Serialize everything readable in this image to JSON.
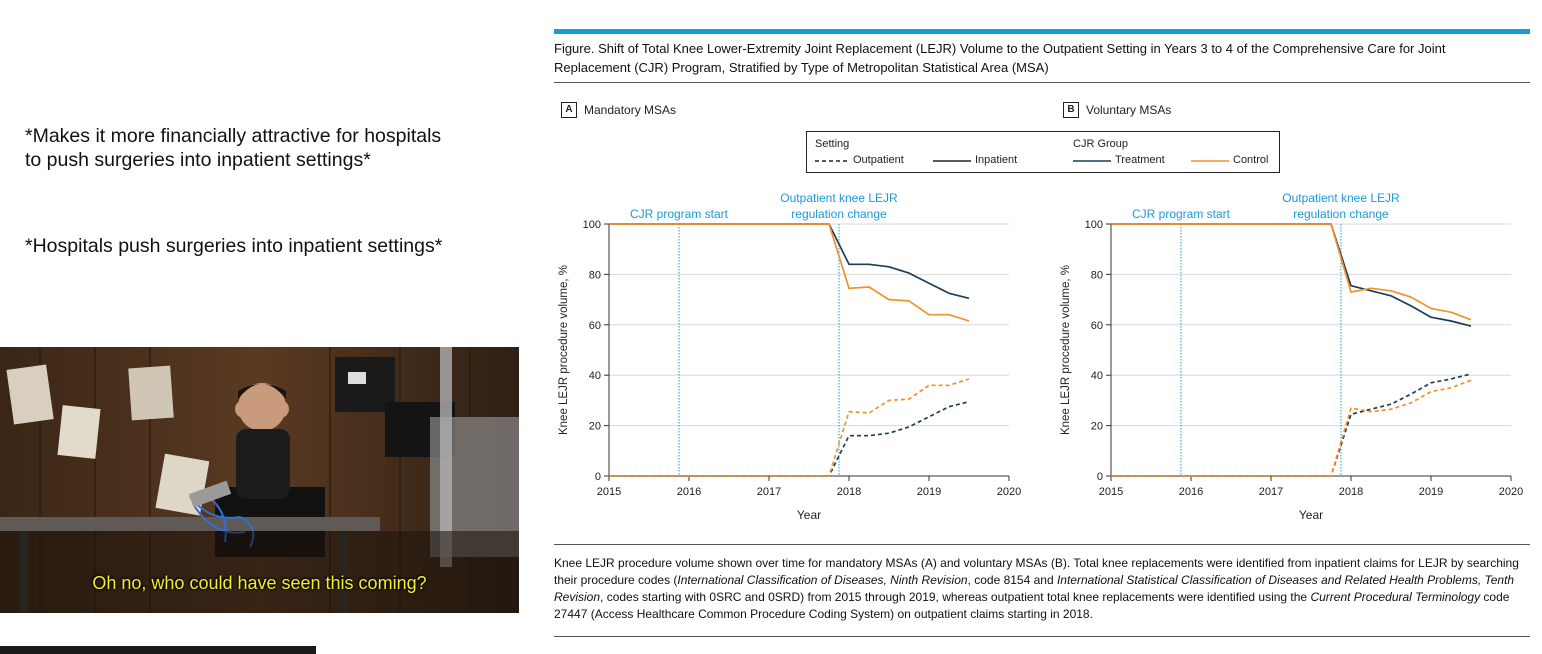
{
  "meme": {
    "line1": "*Makes it more  financially attractive for hospitals to push surgeries into inpatient settings*",
    "line2": "*Hospitals push surgeries into inpatient settings*",
    "subtitle": "Oh no, who could have seen this coming?"
  },
  "figure": {
    "title": "Figure. Shift of Total Knee Lower-Extremity Joint Replacement (LEJR) Volume to the Outpatient Setting in Years 3 to 4 of the Comprehensive Care for Joint Replacement (CJR) Program, Stratified by Type of Metropolitan Statistical Area (MSA)",
    "legend": {
      "setting_title": "Setting",
      "outpatient": "Outpatient",
      "inpatient": "Inpatient",
      "group_title": "CJR Group",
      "treatment": "Treatment",
      "control": "Control"
    },
    "caption": {
      "p1": "Knee LEJR procedure volume shown over time for mandatory MSAs (A) and voluntary MSAs (B). Total knee replacements were identified from inpatient claims for LEJR by searching their procedure codes (",
      "i1": "International Classification of Diseases, Ninth Revision",
      "p2": ", code 8154 and ",
      "i2": "International Statistical Classification of Diseases and Related Health Problems, Tenth Revision",
      "p3": ", codes starting with 0SRC and 0SRD) from 2015 through 2019, whereas outpatient total knee replacements were identified using the ",
      "i3": "Current Procedural Terminology",
      "p4": " code 27447 (Access Healthcare Common Procedure Coding System) on outpatient claims starting in 2018."
    },
    "colors": {
      "treatment": "#1d3d5a",
      "control": "#f0922b",
      "annotation": "#1a9bd7"
    }
  },
  "chart_data": [
    {
      "type": "line",
      "panel_letter": "A",
      "panel_title": "Mandatory MSAs",
      "xlabel": "Year",
      "ylabel": "Knee LEJR procedure volume, %",
      "xlim": [
        2015,
        2020
      ],
      "ylim": [
        0,
        100
      ],
      "xticks": [
        2015,
        2016,
        2017,
        2018,
        2019,
        2020
      ],
      "yticks": [
        0,
        20,
        40,
        60,
        80,
        100
      ],
      "annotations": [
        {
          "x": 2015.875,
          "label": [
            "CJR program start"
          ]
        },
        {
          "x": 2017.875,
          "label": [
            "Outpatient knee LEJR",
            "regulation change"
          ]
        }
      ],
      "series": [
        {
          "name": "Treatment",
          "group": "treatment",
          "setting": "inpatient",
          "x": [
            2015,
            2017.75,
            2018,
            2018.25,
            2018.5,
            2018.75,
            2019,
            2019.25,
            2019.5
          ],
          "y": [
            100,
            100,
            84,
            84,
            83,
            80.5,
            76.5,
            72.5,
            70.5
          ]
        },
        {
          "name": "Control",
          "group": "control",
          "setting": "inpatient",
          "x": [
            2015,
            2017.75,
            2018,
            2018.25,
            2018.5,
            2018.75,
            2019,
            2019.25,
            2019.5
          ],
          "y": [
            100,
            100,
            74.5,
            75,
            70,
            69.5,
            64,
            64,
            61.5
          ]
        },
        {
          "name": "Treatment",
          "group": "treatment",
          "setting": "outpatient",
          "x": [
            2015,
            2017.75,
            2018,
            2018.25,
            2018.5,
            2018.75,
            2019,
            2019.25,
            2019.5
          ],
          "y": [
            0,
            0,
            16,
            16,
            17,
            19.5,
            23.5,
            27.5,
            29.5
          ]
        },
        {
          "name": "Control",
          "group": "control",
          "setting": "outpatient",
          "x": [
            2015,
            2017.75,
            2018,
            2018.25,
            2018.5,
            2018.75,
            2019,
            2019.25,
            2019.5
          ],
          "y": [
            0,
            0,
            25.5,
            25,
            30,
            30.5,
            36,
            36,
            38.5
          ]
        }
      ]
    },
    {
      "type": "line",
      "panel_letter": "B",
      "panel_title": "Voluntary MSAs",
      "xlabel": "Year",
      "ylabel": "Knee LEJR procedure volume, %",
      "xlim": [
        2015,
        2020
      ],
      "ylim": [
        0,
        100
      ],
      "xticks": [
        2015,
        2016,
        2017,
        2018,
        2019,
        2020
      ],
      "yticks": [
        0,
        20,
        40,
        60,
        80,
        100
      ],
      "annotations": [
        {
          "x": 2015.875,
          "label": [
            "CJR program start"
          ]
        },
        {
          "x": 2017.875,
          "label": [
            "Outpatient knee LEJR",
            "regulation change"
          ]
        }
      ],
      "series": [
        {
          "name": "Treatment",
          "group": "treatment",
          "setting": "inpatient",
          "x": [
            2015,
            2017.75,
            2018,
            2018.25,
            2018.5,
            2018.75,
            2019,
            2019.25,
            2019.5
          ],
          "y": [
            100,
            100,
            75.5,
            73.5,
            71.5,
            67.5,
            63,
            61.5,
            59.5
          ]
        },
        {
          "name": "Control",
          "group": "control",
          "setting": "inpatient",
          "x": [
            2015,
            2017.75,
            2018,
            2018.25,
            2018.5,
            2018.75,
            2019,
            2019.25,
            2019.5
          ],
          "y": [
            100,
            100,
            73,
            74.5,
            73.5,
            71,
            66.5,
            65,
            62
          ]
        },
        {
          "name": "Treatment",
          "group": "treatment",
          "setting": "outpatient",
          "x": [
            2015,
            2017.75,
            2018,
            2018.25,
            2018.5,
            2018.75,
            2019,
            2019.25,
            2019.5
          ],
          "y": [
            0,
            0,
            24.5,
            26.5,
            28.5,
            32.5,
            37,
            38.5,
            40.5
          ]
        },
        {
          "name": "Control",
          "group": "control",
          "setting": "outpatient",
          "x": [
            2015,
            2017.75,
            2018,
            2018.25,
            2018.5,
            2018.75,
            2019,
            2019.25,
            2019.5
          ],
          "y": [
            0,
            0,
            27,
            25.5,
            26.5,
            29,
            33.5,
            35,
            38
          ]
        }
      ]
    }
  ]
}
